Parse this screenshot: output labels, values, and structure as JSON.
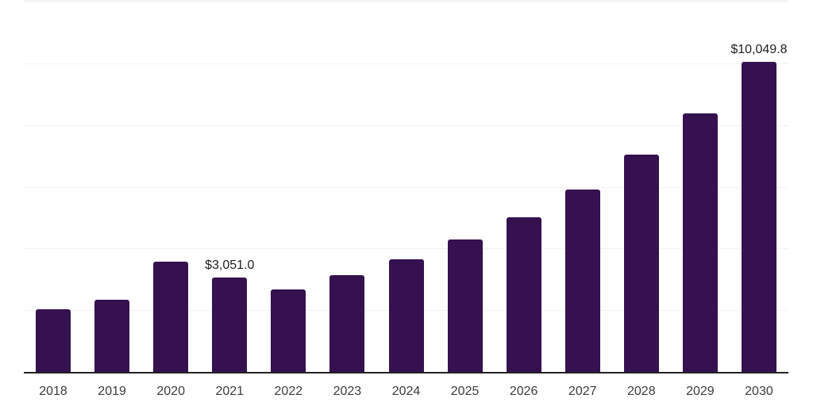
{
  "chart_data": {
    "type": "bar",
    "title": "",
    "xlabel": "",
    "ylabel": "",
    "categories": [
      "2018",
      "2019",
      "2020",
      "2021",
      "2022",
      "2023",
      "2024",
      "2025",
      "2026",
      "2027",
      "2028",
      "2029",
      "2030"
    ],
    "values": [
      2030,
      2346,
      3572,
      3051.0,
      2673,
      3128,
      3637,
      4284,
      5012,
      5903,
      7042,
      8386,
      10049.8
    ],
    "labeled_values": {
      "2021": 3051.0,
      "2030": 10049.8
    },
    "data_labels": [
      {
        "category": "2021",
        "text": "$3,051.0"
      },
      {
        "category": "2030",
        "text": "$10,049.8"
      }
    ],
    "ylim": [
      0,
      12000
    ],
    "gridline_values": [
      2000,
      4000,
      6000,
      8000,
      10000
    ],
    "grid": "horizontal",
    "legend": "none",
    "y_tick_labels_shown": false,
    "colors": {
      "bar": "#361150",
      "axis_line": "#222222",
      "gridline": "#f2f2f2",
      "plot_top_border": "#f3f3f3",
      "tick_label": "#3c3c3c",
      "data_label": "#1f1f1f",
      "background": "#ffffff"
    }
  }
}
